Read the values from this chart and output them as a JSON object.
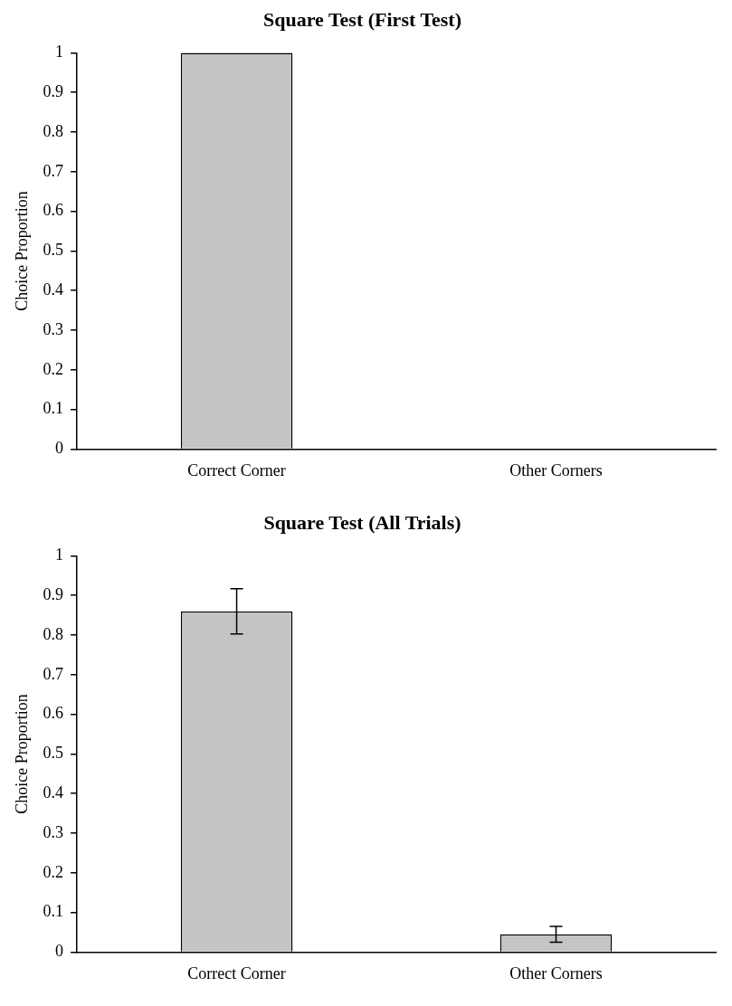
{
  "chart_data": [
    {
      "type": "bar",
      "title": "Square Test (First Test)",
      "ylabel": "Choice Proportion",
      "categories": [
        "Correct Corner",
        "Other Corners"
      ],
      "values": [
        1,
        0
      ],
      "color": "#c4c4c4",
      "ylim": [
        0,
        1
      ],
      "yticks": [
        0,
        0.1,
        0.2,
        0.3,
        0.4,
        0.5,
        0.6,
        0.7,
        0.8,
        0.9,
        1
      ],
      "grid": false,
      "legend": false
    },
    {
      "type": "bar",
      "title": "Square Test (All Trials)",
      "ylabel": "Choice Proportion",
      "categories": [
        "Correct Corner",
        "Other Corners"
      ],
      "values": [
        0.86,
        0.045
      ],
      "errors": [
        0.057,
        0.02
      ],
      "color": "#c4c4c4",
      "ylim": [
        0,
        1
      ],
      "yticks": [
        0,
        0.1,
        0.2,
        0.3,
        0.4,
        0.5,
        0.6,
        0.7,
        0.8,
        0.9,
        1
      ],
      "grid": false,
      "legend": false
    }
  ]
}
